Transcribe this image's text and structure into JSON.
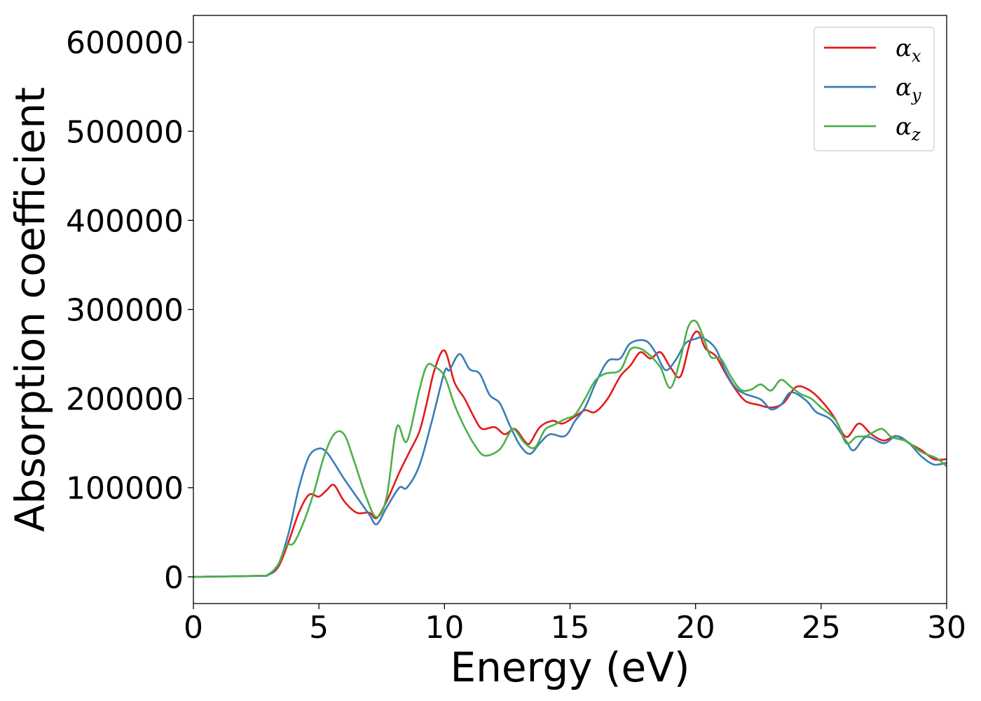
{
  "chart_data": {
    "type": "line",
    "title": "",
    "xlabel": "Energy (eV)",
    "ylabel": "Absorption coefficient",
    "xlim": [
      0,
      30
    ],
    "ylim": [
      -30000,
      630000
    ],
    "xticks": [
      0,
      5,
      10,
      15,
      20,
      25,
      30
    ],
    "yticks": [
      0,
      100000,
      200000,
      300000,
      400000,
      500000,
      600000
    ],
    "grid": false,
    "legend": "top-right",
    "series": [
      {
        "name": "α_x",
        "label_main": "α",
        "label_sub": "x",
        "color": "#e41a1c",
        "points": [
          [
            0,
            0
          ],
          [
            2.5,
            1000
          ],
          [
            3.0,
            2500
          ],
          [
            3.4,
            12000
          ],
          [
            3.8,
            40000
          ],
          [
            4.2,
            72000
          ],
          [
            4.6,
            92000
          ],
          [
            5.0,
            90000
          ],
          [
            5.3,
            97000
          ],
          [
            5.6,
            103000
          ],
          [
            6.0,
            85000
          ],
          [
            6.5,
            72000
          ],
          [
            7.0,
            72000
          ],
          [
            7.3,
            66000
          ],
          [
            7.7,
            85000
          ],
          [
            8.2,
            117000
          ],
          [
            8.6,
            140000
          ],
          [
            9.0,
            163000
          ],
          [
            9.3,
            196000
          ],
          [
            9.6,
            232000
          ],
          [
            10.0,
            254000
          ],
          [
            10.4,
            218000
          ],
          [
            10.8,
            200000
          ],
          [
            11.2,
            178000
          ],
          [
            11.5,
            166000
          ],
          [
            12.0,
            168000
          ],
          [
            12.4,
            160000
          ],
          [
            12.8,
            166000
          ],
          [
            13.2,
            152000
          ],
          [
            13.4,
            150000
          ],
          [
            13.8,
            168000
          ],
          [
            14.3,
            175000
          ],
          [
            14.7,
            172000
          ],
          [
            15.2,
            180000
          ],
          [
            15.6,
            187000
          ],
          [
            16.0,
            185000
          ],
          [
            16.5,
            200000
          ],
          [
            17.0,
            225000
          ],
          [
            17.4,
            237000
          ],
          [
            17.8,
            252000
          ],
          [
            18.2,
            245000
          ],
          [
            18.6,
            252000
          ],
          [
            19.0,
            235000
          ],
          [
            19.4,
            225000
          ],
          [
            19.8,
            265000
          ],
          [
            20.1,
            275000
          ],
          [
            20.4,
            256000
          ],
          [
            20.8,
            248000
          ],
          [
            21.2,
            228000
          ],
          [
            21.6,
            210000
          ],
          [
            22.0,
            197000
          ],
          [
            22.5,
            193000
          ],
          [
            23.0,
            190000
          ],
          [
            23.5,
            195000
          ],
          [
            24.0,
            213000
          ],
          [
            24.5,
            210000
          ],
          [
            25.0,
            198000
          ],
          [
            25.5,
            180000
          ],
          [
            26.0,
            157000
          ],
          [
            26.5,
            172000
          ],
          [
            27.0,
            160000
          ],
          [
            27.5,
            153000
          ],
          [
            28.0,
            158000
          ],
          [
            28.5,
            150000
          ],
          [
            29.0,
            142000
          ],
          [
            29.5,
            132000
          ],
          [
            30.0,
            132000
          ]
        ]
      },
      {
        "name": "α_y",
        "label_main": "α",
        "label_sub": "y",
        "color": "#377eb8",
        "points": [
          [
            0,
            0
          ],
          [
            2.5,
            1000
          ],
          [
            3.0,
            2500
          ],
          [
            3.4,
            15000
          ],
          [
            3.8,
            50000
          ],
          [
            4.2,
            100000
          ],
          [
            4.6,
            135000
          ],
          [
            5.0,
            144000
          ],
          [
            5.3,
            140000
          ],
          [
            5.6,
            128000
          ],
          [
            6.0,
            110000
          ],
          [
            6.5,
            90000
          ],
          [
            7.0,
            70000
          ],
          [
            7.3,
            59000
          ],
          [
            7.7,
            78000
          ],
          [
            8.2,
            100000
          ],
          [
            8.5,
            100000
          ],
          [
            9.0,
            125000
          ],
          [
            9.5,
            175000
          ],
          [
            10.0,
            230000
          ],
          [
            10.2,
            232000
          ],
          [
            10.6,
            250000
          ],
          [
            11.0,
            233000
          ],
          [
            11.4,
            228000
          ],
          [
            11.8,
            204000
          ],
          [
            12.2,
            195000
          ],
          [
            12.6,
            170000
          ],
          [
            13.0,
            148000
          ],
          [
            13.4,
            138000
          ],
          [
            13.8,
            150000
          ],
          [
            14.2,
            160000
          ],
          [
            14.8,
            158000
          ],
          [
            15.2,
            175000
          ],
          [
            15.6,
            190000
          ],
          [
            16.0,
            216000
          ],
          [
            16.5,
            242000
          ],
          [
            17.0,
            245000
          ],
          [
            17.4,
            262000
          ],
          [
            18.0,
            265000
          ],
          [
            18.4,
            252000
          ],
          [
            18.8,
            232000
          ],
          [
            19.2,
            243000
          ],
          [
            19.6,
            262000
          ],
          [
            20.0,
            267000
          ],
          [
            20.3,
            268000
          ],
          [
            20.8,
            256000
          ],
          [
            21.2,
            230000
          ],
          [
            21.6,
            212000
          ],
          [
            22.0,
            205000
          ],
          [
            22.6,
            199000
          ],
          [
            23.0,
            188000
          ],
          [
            23.4,
            193000
          ],
          [
            23.8,
            207000
          ],
          [
            24.4,
            198000
          ],
          [
            24.8,
            185000
          ],
          [
            25.4,
            176000
          ],
          [
            26.0,
            152000
          ],
          [
            26.3,
            142000
          ],
          [
            26.8,
            157000
          ],
          [
            27.5,
            150000
          ],
          [
            28.0,
            158000
          ],
          [
            28.5,
            150000
          ],
          [
            29.0,
            135000
          ],
          [
            29.5,
            126000
          ],
          [
            30.0,
            128000
          ]
        ]
      },
      {
        "name": "α_z",
        "label_main": "α",
        "label_sub": "z",
        "color": "#4daf4a",
        "points": [
          [
            0,
            0
          ],
          [
            2.5,
            1000
          ],
          [
            3.0,
            3000
          ],
          [
            3.4,
            15000
          ],
          [
            3.7,
            35000
          ],
          [
            4.0,
            38000
          ],
          [
            4.4,
            62000
          ],
          [
            4.8,
            95000
          ],
          [
            5.2,
            135000
          ],
          [
            5.6,
            160000
          ],
          [
            6.0,
            160000
          ],
          [
            6.4,
            130000
          ],
          [
            6.9,
            88000
          ],
          [
            7.3,
            67000
          ],
          [
            7.7,
            90000
          ],
          [
            8.1,
            168000
          ],
          [
            8.5,
            152000
          ],
          [
            9.0,
            210000
          ],
          [
            9.3,
            237000
          ],
          [
            9.6,
            236000
          ],
          [
            10.0,
            225000
          ],
          [
            10.4,
            193000
          ],
          [
            10.8,
            168000
          ],
          [
            11.2,
            148000
          ],
          [
            11.6,
            136000
          ],
          [
            12.2,
            143000
          ],
          [
            12.6,
            162000
          ],
          [
            12.8,
            165000
          ],
          [
            13.2,
            150000
          ],
          [
            13.6,
            145000
          ],
          [
            14.0,
            165000
          ],
          [
            14.4,
            171000
          ],
          [
            14.8,
            177000
          ],
          [
            15.2,
            182000
          ],
          [
            15.6,
            200000
          ],
          [
            16.0,
            220000
          ],
          [
            16.4,
            228000
          ],
          [
            17.0,
            232000
          ],
          [
            17.4,
            255000
          ],
          [
            17.8,
            256000
          ],
          [
            18.2,
            248000
          ],
          [
            18.6,
            235000
          ],
          [
            19.0,
            212000
          ],
          [
            19.4,
            245000
          ],
          [
            19.7,
            280000
          ],
          [
            20.0,
            287000
          ],
          [
            20.3,
            270000
          ],
          [
            20.6,
            247000
          ],
          [
            21.0,
            245000
          ],
          [
            21.4,
            225000
          ],
          [
            21.8,
            210000
          ],
          [
            22.2,
            210000
          ],
          [
            22.6,
            216000
          ],
          [
            23.0,
            209000
          ],
          [
            23.4,
            221000
          ],
          [
            23.8,
            213000
          ],
          [
            24.2,
            205000
          ],
          [
            24.6,
            200000
          ],
          [
            25.0,
            190000
          ],
          [
            25.6,
            175000
          ],
          [
            26.0,
            150000
          ],
          [
            26.4,
            157000
          ],
          [
            26.8,
            158000
          ],
          [
            27.4,
            166000
          ],
          [
            27.8,
            157000
          ],
          [
            28.4,
            152000
          ],
          [
            29.0,
            140000
          ],
          [
            29.6,
            133000
          ],
          [
            30.0,
            124000
          ]
        ]
      }
    ]
  }
}
